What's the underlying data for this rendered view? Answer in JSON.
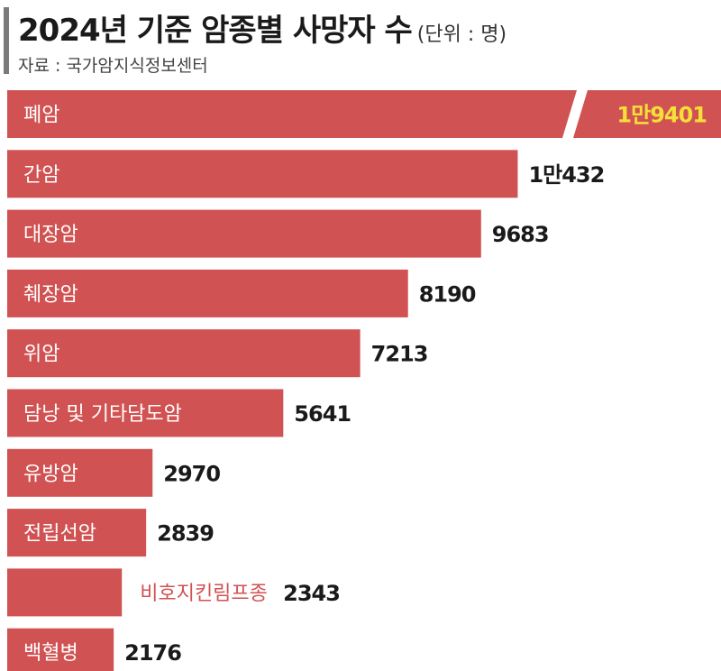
{
  "title": "2024년 기준 암종별 사망자 수",
  "unit": "(단위 : 명)",
  "source": "자료 : 국가암지식정보센터",
  "colors": {
    "bar": "#d15252",
    "value_text": "#1a1a1a",
    "highlight_text": "#f5e03a",
    "hollow_label": "#d15252"
  },
  "chart_data": {
    "type": "bar",
    "orientation": "horizontal",
    "categories": [
      "폐암",
      "간암",
      "대장암",
      "췌장암",
      "위암",
      "담낭 및 기타담도암",
      "유방암",
      "전립선암",
      "비호지킨림프종",
      "백혈병"
    ],
    "values": [
      19401,
      10432,
      9683,
      8190,
      7213,
      5641,
      2970,
      2839,
      2343,
      2176
    ],
    "value_labels": [
      "1만9401",
      "1만432",
      "9683",
      "8190",
      "7213",
      "5641",
      "2970",
      "2839",
      "2343",
      "2176"
    ],
    "axis_break_on": "폐암",
    "legend": "none",
    "grid": false
  }
}
